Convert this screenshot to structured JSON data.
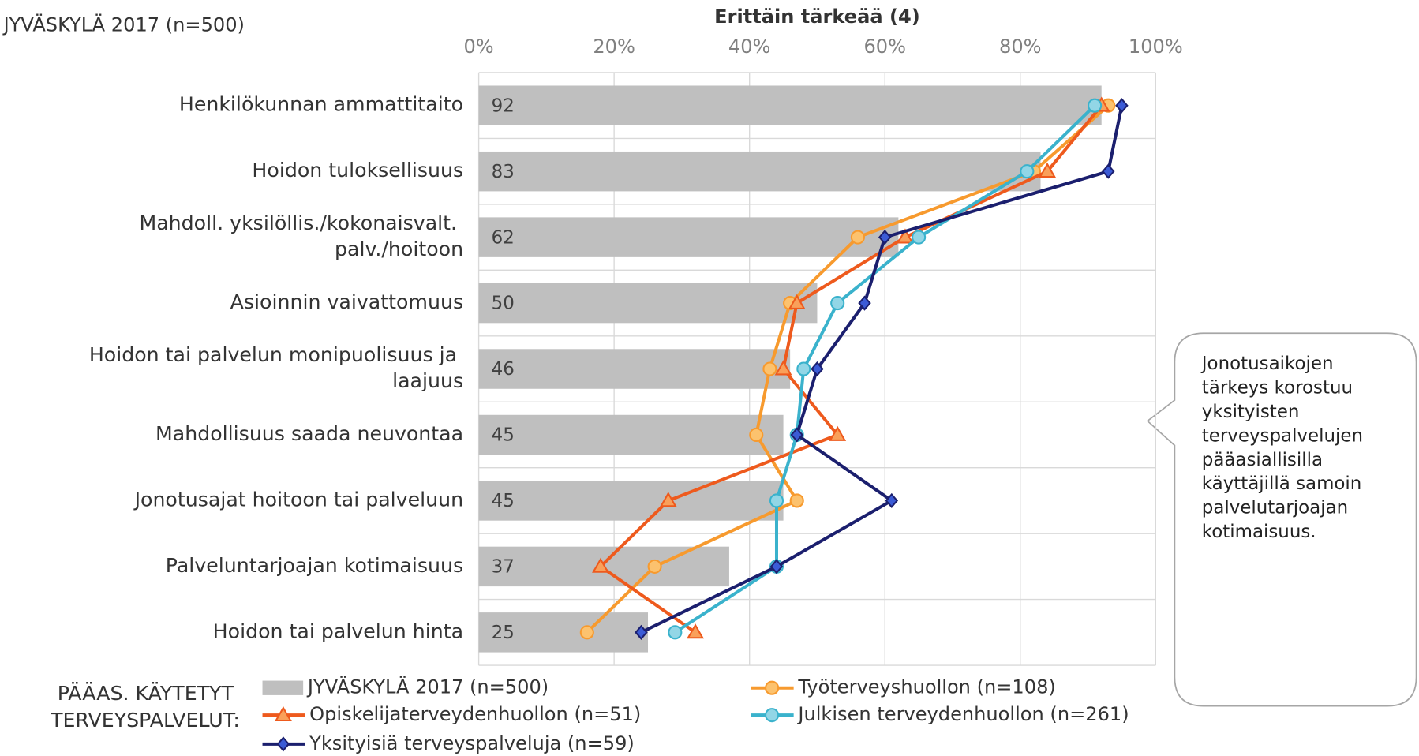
{
  "chart_data": {
    "type": "bar_line",
    "title": "Erittäin tärkeää (4)",
    "subtitle": "JYVÄSKYLÄ 2017 (n=500)",
    "annotation": "Jonotusaikojen tärkeys korostuu yksityisten terveyspalvelujen pääasiallisilla käyttäjillä samoin palvelutarjoajan kotimaisuus.",
    "legend_title": "PÄÄAS. KÄYTETYT TERVEYSPALVELUT:",
    "categories": [
      "Henkilökunnan ammattitaito",
      "Hoidon tuloksellisuus",
      "Mahdoll. yksilöllis./kokonaisvalt. palv./hoitoon",
      "Asioinnin vaivattomuus",
      "Hoidon tai palvelun monipuolisuus ja laajuus",
      "Mahdollisuus saada neuvontaa",
      "Jonotusajat hoitoon tai palveluun",
      "Palveluntarjoajan kotimaisuus",
      "Hoidon tai palvelun hinta"
    ],
    "bars": {
      "name": "JYVÄSKYLÄ 2017 (n=500)",
      "color": "#bfbfbf",
      "values": [
        92,
        83,
        62,
        50,
        46,
        45,
        45,
        37,
        25
      ]
    },
    "series": [
      {
        "name": "Työterveyshuollon (n=108)",
        "color": "#f79a2e",
        "marker": "circle",
        "marker_fill": "#fcc26e",
        "values": [
          93,
          82,
          56,
          46,
          43,
          41,
          47,
          26,
          16
        ]
      },
      {
        "name": "Opiskelijaterveydenhuollon (n=51)",
        "color": "#ee5a1d",
        "marker": "triangle",
        "marker_fill": "#f9a05a",
        "values": [
          92,
          84,
          63,
          47,
          45,
          53,
          28,
          18,
          32
        ]
      },
      {
        "name": "Julkisen terveydenhuollon (n=261)",
        "color": "#3ab2cc",
        "marker": "circle",
        "marker_fill": "#92d6e6",
        "values": [
          91,
          81,
          65,
          53,
          48,
          47,
          44,
          44,
          29
        ]
      },
      {
        "name": "Yksityisiä terveyspalveluja (n=59)",
        "color": "#1b1f6e",
        "marker": "diamond",
        "marker_fill": "#3b5bd6",
        "values": [
          95,
          93,
          60,
          57,
          50,
          47,
          61,
          44,
          24
        ]
      }
    ],
    "xlim": [
      0,
      100
    ],
    "xticks": [
      {
        "value": 0,
        "label": "0%"
      },
      {
        "value": 20,
        "label": "20%"
      },
      {
        "value": 40,
        "label": "40%"
      },
      {
        "value": 60,
        "label": "60%"
      },
      {
        "value": 80,
        "label": "80%"
      },
      {
        "value": 100,
        "label": "100%"
      }
    ],
    "grid": true
  }
}
